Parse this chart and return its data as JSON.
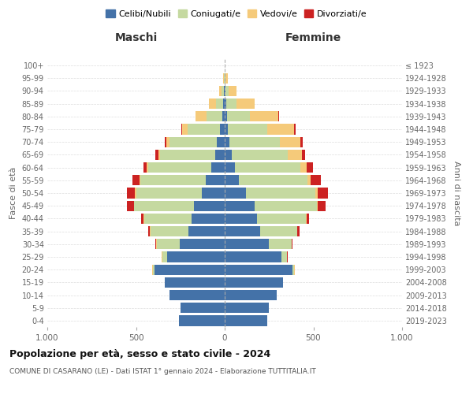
{
  "age_groups": [
    "0-4",
    "5-9",
    "10-14",
    "15-19",
    "20-24",
    "25-29",
    "30-34",
    "35-39",
    "40-44",
    "45-49",
    "50-54",
    "55-59",
    "60-64",
    "65-69",
    "70-74",
    "75-79",
    "80-84",
    "85-89",
    "90-94",
    "95-99",
    "100+"
  ],
  "birth_years": [
    "2019-2023",
    "2014-2018",
    "2009-2013",
    "2004-2008",
    "1999-2003",
    "1994-1998",
    "1989-1993",
    "1984-1988",
    "1979-1983",
    "1974-1978",
    "1969-1973",
    "1964-1968",
    "1959-1963",
    "1954-1958",
    "1949-1953",
    "1944-1948",
    "1939-1943",
    "1934-1938",
    "1929-1933",
    "1924-1928",
    "≤ 1923"
  ],
  "male": {
    "celibi": [
      260,
      250,
      310,
      340,
      395,
      325,
      255,
      205,
      185,
      175,
      130,
      105,
      75,
      55,
      45,
      25,
      15,
      8,
      4,
      2,
      0
    ],
    "coniugati": [
      0,
      0,
      0,
      0,
      10,
      28,
      128,
      215,
      270,
      335,
      370,
      370,
      358,
      310,
      265,
      185,
      88,
      42,
      14,
      3,
      0
    ],
    "vedovi": [
      0,
      0,
      0,
      0,
      2,
      2,
      2,
      2,
      2,
      3,
      5,
      5,
      5,
      10,
      20,
      30,
      62,
      38,
      14,
      2,
      0
    ],
    "divorziati": [
      0,
      0,
      0,
      0,
      0,
      2,
      5,
      10,
      15,
      38,
      48,
      38,
      22,
      14,
      8,
      5,
      0,
      0,
      0,
      0,
      0
    ]
  },
  "female": {
    "nubili": [
      240,
      248,
      295,
      328,
      382,
      322,
      248,
      198,
      182,
      168,
      120,
      80,
      58,
      38,
      28,
      18,
      12,
      8,
      4,
      2,
      0
    ],
    "coniugate": [
      0,
      0,
      0,
      0,
      10,
      28,
      128,
      210,
      275,
      350,
      390,
      385,
      368,
      318,
      282,
      222,
      128,
      58,
      18,
      4,
      0
    ],
    "vedove": [
      0,
      0,
      0,
      0,
      2,
      2,
      2,
      3,
      5,
      8,
      15,
      20,
      35,
      80,
      118,
      152,
      162,
      105,
      44,
      12,
      1
    ],
    "divorziate": [
      0,
      0,
      0,
      0,
      0,
      2,
      5,
      10,
      15,
      45,
      58,
      55,
      38,
      18,
      12,
      8,
      4,
      0,
      0,
      0,
      0
    ]
  },
  "colors": {
    "celibi": "#4472a8",
    "coniugati": "#c5d9a0",
    "vedovi": "#f5ca7a",
    "divorziati": "#cc2222"
  },
  "xlim": 1000,
  "title": "Popolazione per età, sesso e stato civile - 2024",
  "subtitle": "COMUNE DI CASARANO (LE) - Dati ISTAT 1° gennaio 2024 - Elaborazione TUTTITALIA.IT",
  "xlabel_left": "Maschi",
  "xlabel_right": "Femmine",
  "ylabel_left": "Fasce di età",
  "ylabel_right": "Anni di nascita",
  "legend_labels": [
    "Celibi/Nubili",
    "Coniugati/e",
    "Vedovi/e",
    "Divorziati/e"
  ],
  "background_color": "#ffffff",
  "grid_color": "#cccccc"
}
